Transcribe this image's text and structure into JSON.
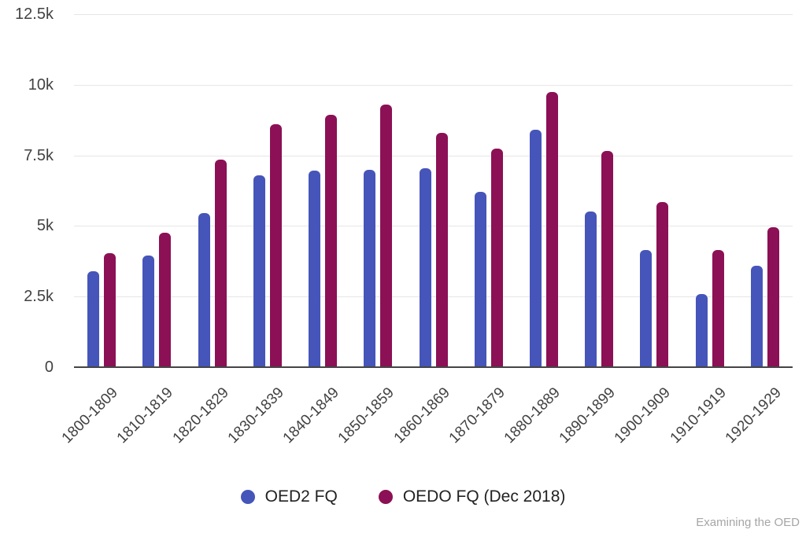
{
  "chart_data": {
    "type": "bar",
    "title": "",
    "xlabel": "",
    "ylabel": "",
    "categories": [
      "1800-1809",
      "1810-1819",
      "1820-1829",
      "1830-1839",
      "1840-1849",
      "1850-1859",
      "1860-1869",
      "1870-1879",
      "1880-1889",
      "1890-1899",
      "1900-1909",
      "1910-1919",
      "1920-1929"
    ],
    "series": [
      {
        "name": "OED2 FQ",
        "color": "#4655b9",
        "values": [
          3400,
          3950,
          5450,
          6800,
          6950,
          7000,
          7050,
          6200,
          8400,
          5500,
          4150,
          2600,
          3600
        ]
      },
      {
        "name": "OEDO FQ (Dec 2018)",
        "color": "#8c1055",
        "values": [
          4050,
          4750,
          7350,
          8600,
          8950,
          9300,
          8300,
          7750,
          9750,
          7650,
          5850,
          4150,
          4950
        ]
      }
    ],
    "ylim": [
      0,
      12500
    ],
    "yticks": [
      {
        "value": 0,
        "label": "0"
      },
      {
        "value": 2500,
        "label": "2.5k"
      },
      {
        "value": 5000,
        "label": "5k"
      },
      {
        "value": 7500,
        "label": "7.5k"
      },
      {
        "value": 10000,
        "label": "10k"
      },
      {
        "value": 12500,
        "label": "12.5k"
      }
    ],
    "grid": true,
    "legend_position": "bottom"
  },
  "footer": {
    "credit": "Examining the OED"
  },
  "colors": {
    "series_blue": "#4655b9",
    "series_maroon": "#8c1055",
    "gridline": "#e6e6e6",
    "axis_line": "#454545",
    "axis_text": "#424242",
    "credit_text": "#a6a6a6",
    "background": "#ffffff"
  }
}
